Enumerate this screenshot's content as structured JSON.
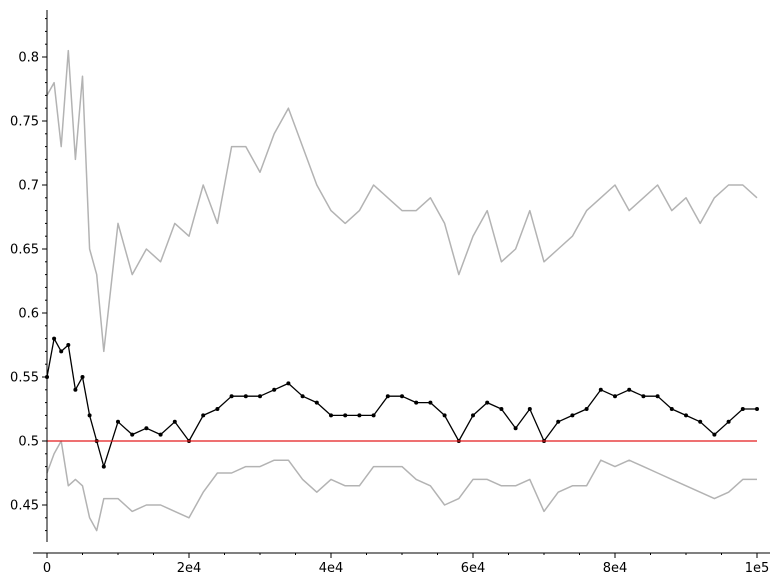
{
  "chart_data": {
    "type": "line",
    "title": "",
    "xlabel": "",
    "ylabel": "",
    "xlim": [
      0,
      100000
    ],
    "ylim": [
      0.42,
      0.835
    ],
    "x_ticks": [
      0,
      20000,
      40000,
      60000,
      80000,
      100000
    ],
    "x_tick_labels": [
      "0",
      "2e4",
      "4e4",
      "6e4",
      "8e4",
      "1e5"
    ],
    "y_ticks": [
      0.45,
      0.5,
      0.55,
      0.6,
      0.65,
      0.7,
      0.75,
      0.8
    ],
    "y_tick_labels": [
      "0.45",
      "0.5",
      "0.55",
      "0.6",
      "0.65",
      "0.7",
      "0.75",
      "0.8"
    ],
    "grid": false,
    "legend": "none",
    "colors": {
      "upper": "#b3b3b3",
      "lower": "#b3b3b3",
      "mean": "#000000",
      "reference": "#e31a1c"
    },
    "reference_line": {
      "y": 0.5
    },
    "x": [
      0,
      1000,
      2000,
      3000,
      4000,
      5000,
      6000,
      7000,
      8000,
      10000,
      12000,
      14000,
      16000,
      18000,
      20000,
      22000,
      24000,
      26000,
      28000,
      30000,
      32000,
      34000,
      36000,
      38000,
      40000,
      42000,
      44000,
      46000,
      48000,
      50000,
      52000,
      54000,
      56000,
      58000,
      60000,
      62000,
      64000,
      66000,
      68000,
      70000,
      72000,
      74000,
      76000,
      78000,
      80000,
      82000,
      84000,
      86000,
      88000,
      90000,
      92000,
      94000,
      96000,
      98000,
      100000
    ],
    "series": [
      {
        "values": [
          0.77,
          0.78,
          0.73,
          0.805,
          0.72,
          0.785,
          0.65,
          0.63,
          0.57,
          0.67,
          0.63,
          0.65,
          0.64,
          0.67,
          0.66,
          0.7,
          0.67,
          0.73,
          0.73,
          0.71,
          0.74,
          0.76,
          0.73,
          0.7,
          0.68,
          0.67,
          0.68,
          0.7,
          0.69,
          0.68,
          0.68,
          0.69,
          0.67,
          0.63,
          0.66,
          0.68,
          0.64,
          0.65,
          0.68,
          0.64,
          0.65,
          0.66,
          0.68,
          0.69,
          0.7,
          0.68,
          0.69,
          0.7,
          0.68,
          0.69,
          0.67,
          0.69,
          0.7,
          0.7,
          0.69
        ]
      },
      {
        "values": [
          0.55,
          0.58,
          0.57,
          0.575,
          0.54,
          0.55,
          0.52,
          0.5,
          0.48,
          0.515,
          0.505,
          0.51,
          0.505,
          0.515,
          0.5,
          0.52,
          0.525,
          0.535,
          0.535,
          0.535,
          0.54,
          0.545,
          0.535,
          0.53,
          0.52,
          0.52,
          0.52,
          0.52,
          0.535,
          0.535,
          0.53,
          0.53,
          0.52,
          0.5,
          0.52,
          0.53,
          0.525,
          0.51,
          0.525,
          0.5,
          0.515,
          0.52,
          0.525,
          0.54,
          0.535,
          0.54,
          0.535,
          0.535,
          0.525,
          0.52,
          0.515,
          0.505,
          0.515,
          0.525,
          0.525
        ]
      },
      {
        "values": [
          0.475,
          0.49,
          0.5,
          0.465,
          0.47,
          0.465,
          0.44,
          0.43,
          0.455,
          0.455,
          0.445,
          0.45,
          0.45,
          0.445,
          0.44,
          0.46,
          0.475,
          0.475,
          0.48,
          0.48,
          0.485,
          0.485,
          0.47,
          0.46,
          0.47,
          0.465,
          0.465,
          0.48,
          0.48,
          0.48,
          0.47,
          0.465,
          0.45,
          0.455,
          0.47,
          0.47,
          0.465,
          0.465,
          0.47,
          0.445,
          0.46,
          0.465,
          0.465,
          0.485,
          0.48,
          0.485,
          0.48,
          0.475,
          0.47,
          0.465,
          0.46,
          0.455,
          0.46,
          0.47,
          0.47
        ]
      }
    ]
  }
}
